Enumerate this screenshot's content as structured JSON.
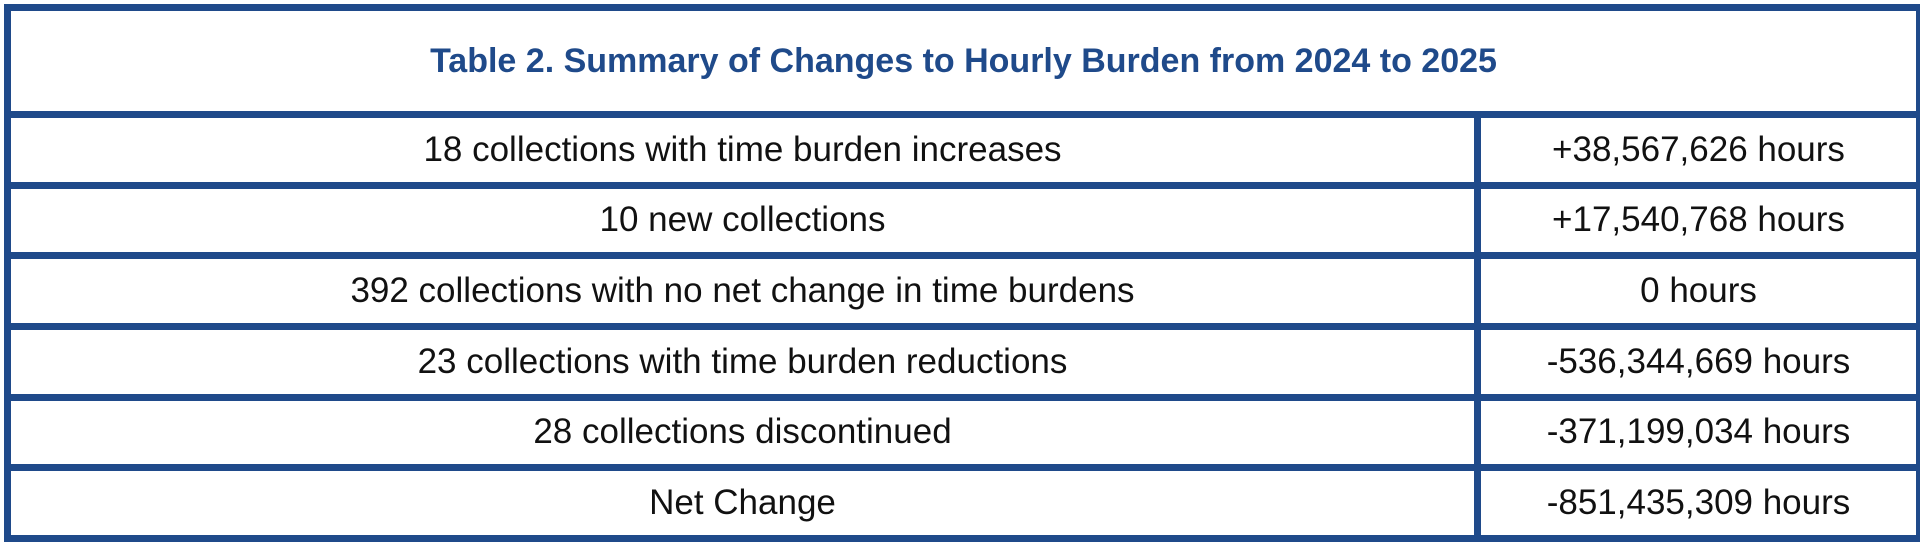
{
  "table": {
    "title": "Table 2. Summary of Changes to Hourly Burden from 2024 to 2025",
    "rows": [
      [
        "18 collections with time burden increases",
        "+38,567,626 hours"
      ],
      [
        "10 new collections",
        "+17,540,768 hours"
      ],
      [
        "392 collections with no net change in time burdens",
        "0 hours"
      ],
      [
        "23 collections with time burden reductions",
        "-536,344,669 hours"
      ],
      [
        "28 collections discontinued",
        "-371,199,034 hours"
      ],
      [
        "Net Change",
        "-851,435,309 hours"
      ]
    ]
  }
}
